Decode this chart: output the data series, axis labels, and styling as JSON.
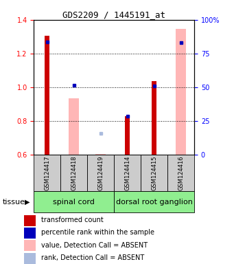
{
  "title": "GDS2209 / 1445191_at",
  "samples": [
    "GSM124417",
    "GSM124418",
    "GSM124419",
    "GSM124414",
    "GSM124415",
    "GSM124416"
  ],
  "ylim_left": [
    0.6,
    1.4
  ],
  "ylim_right": [
    0,
    100
  ],
  "yticks_left": [
    0.6,
    0.8,
    1.0,
    1.2,
    1.4
  ],
  "yticks_right": [
    0,
    25,
    50,
    75,
    100
  ],
  "ytick_right_labels": [
    "0",
    "25",
    "50",
    "75",
    "100%"
  ],
  "red_bars": [
    1.305,
    null,
    null,
    0.826,
    1.035,
    null
  ],
  "pink_bars": [
    null,
    0.935,
    0.603,
    null,
    null,
    1.345
  ],
  "blue_squares": [
    1.27,
    1.01,
    null,
    0.828,
    1.005,
    1.265
  ],
  "lavender_squares": [
    null,
    null,
    0.725,
    null,
    null,
    null
  ],
  "red_bar_width": 0.18,
  "pink_bar_width": 0.38,
  "red_color": "#CC0000",
  "pink_color": "#FFB6B6",
  "blue_color": "#0000BB",
  "lavender_color": "#AABBDD",
  "base_value": 0.6,
  "sample_box_color": "#CCCCCC",
  "group1_name": "spinal cord",
  "group2_name": "dorsal root ganglion",
  "group_color": "#90EE90",
  "tissue_label": "tissue",
  "legend_items": [
    [
      "#CC0000",
      "transformed count"
    ],
    [
      "#0000BB",
      "percentile rank within the sample"
    ],
    [
      "#FFB6B6",
      "value, Detection Call = ABSENT"
    ],
    [
      "#AABBDD",
      "rank, Detection Call = ABSENT"
    ]
  ]
}
